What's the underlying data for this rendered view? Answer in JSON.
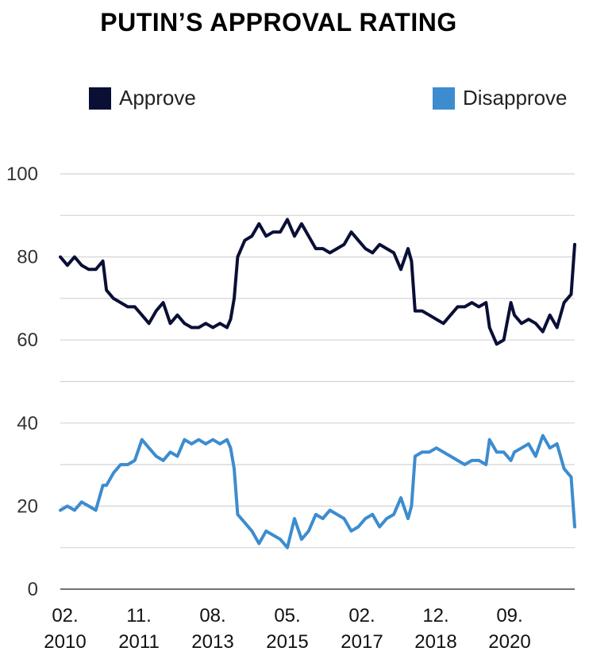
{
  "chart_data": {
    "type": "line",
    "title": "PUTIN’S APPROVAL RATING",
    "x_tick_labels": [
      {
        "month": "02.",
        "year": "2010"
      },
      {
        "month": "11.",
        "year": "2011"
      },
      {
        "month": "08.",
        "year": "2013"
      },
      {
        "month": "05.",
        "year": "2015"
      },
      {
        "month": "02.",
        "year": "2017"
      },
      {
        "month": "12.",
        "year": "2018"
      },
      {
        "month": "09.",
        "year": "2020"
      }
    ],
    "y_ticks": [
      "0",
      "20",
      "40",
      "60",
      "80",
      "100"
    ],
    "ylim": [
      0,
      100
    ],
    "xlim": [
      "2010-02",
      "2022-03"
    ],
    "grid": true,
    "legend_position": "top",
    "series": [
      {
        "name": "Approve",
        "color": "#0a0f36",
        "points": [
          [
            "2010-02",
            80
          ],
          [
            "2010-04",
            78
          ],
          [
            "2010-06",
            80
          ],
          [
            "2010-08",
            78
          ],
          [
            "2010-10",
            77
          ],
          [
            "2010-12",
            77
          ],
          [
            "2011-02",
            79
          ],
          [
            "2011-03",
            72
          ],
          [
            "2011-05",
            70
          ],
          [
            "2011-07",
            69
          ],
          [
            "2011-09",
            68
          ],
          [
            "2011-11",
            68
          ],
          [
            "2012-01",
            66
          ],
          [
            "2012-03",
            64
          ],
          [
            "2012-05",
            67
          ],
          [
            "2012-07",
            69
          ],
          [
            "2012-09",
            64
          ],
          [
            "2012-11",
            66
          ],
          [
            "2013-01",
            64
          ],
          [
            "2013-03",
            63
          ],
          [
            "2013-05",
            63
          ],
          [
            "2013-07",
            64
          ],
          [
            "2013-09",
            63
          ],
          [
            "2013-11",
            64
          ],
          [
            "2014-01",
            63
          ],
          [
            "2014-02",
            65
          ],
          [
            "2014-03",
            70
          ],
          [
            "2014-04",
            80
          ],
          [
            "2014-06",
            84
          ],
          [
            "2014-08",
            85
          ],
          [
            "2014-10",
            88
          ],
          [
            "2014-12",
            85
          ],
          [
            "2015-02",
            86
          ],
          [
            "2015-04",
            86
          ],
          [
            "2015-06",
            89
          ],
          [
            "2015-08",
            85
          ],
          [
            "2015-10",
            88
          ],
          [
            "2015-12",
            85
          ],
          [
            "2016-02",
            82
          ],
          [
            "2016-04",
            82
          ],
          [
            "2016-06",
            81
          ],
          [
            "2016-08",
            82
          ],
          [
            "2016-10",
            83
          ],
          [
            "2016-12",
            86
          ],
          [
            "2017-02",
            84
          ],
          [
            "2017-04",
            82
          ],
          [
            "2017-06",
            81
          ],
          [
            "2017-08",
            83
          ],
          [
            "2017-10",
            82
          ],
          [
            "2017-12",
            81
          ],
          [
            "2018-02",
            77
          ],
          [
            "2018-04",
            82
          ],
          [
            "2018-05",
            79
          ],
          [
            "2018-06",
            67
          ],
          [
            "2018-08",
            67
          ],
          [
            "2018-10",
            66
          ],
          [
            "2018-12",
            65
          ],
          [
            "2019-02",
            64
          ],
          [
            "2019-04",
            66
          ],
          [
            "2019-06",
            68
          ],
          [
            "2019-08",
            68
          ],
          [
            "2019-10",
            69
          ],
          [
            "2019-12",
            68
          ],
          [
            "2020-02",
            69
          ],
          [
            "2020-03",
            63
          ],
          [
            "2020-05",
            59
          ],
          [
            "2020-07",
            60
          ],
          [
            "2020-09",
            69
          ],
          [
            "2020-10",
            66
          ],
          [
            "2020-12",
            64
          ],
          [
            "2021-02",
            65
          ],
          [
            "2021-04",
            64
          ],
          [
            "2021-06",
            62
          ],
          [
            "2021-08",
            66
          ],
          [
            "2021-10",
            63
          ],
          [
            "2021-12",
            69
          ],
          [
            "2022-02",
            71
          ],
          [
            "2022-03",
            83
          ]
        ]
      },
      {
        "name": "Disapprove",
        "color": "#3d8ccf",
        "points": [
          [
            "2010-02",
            19
          ],
          [
            "2010-04",
            20
          ],
          [
            "2010-06",
            19
          ],
          [
            "2010-08",
            21
          ],
          [
            "2010-10",
            20
          ],
          [
            "2010-12",
            19
          ],
          [
            "2011-02",
            25
          ],
          [
            "2011-03",
            25
          ],
          [
            "2011-05",
            28
          ],
          [
            "2011-07",
            30
          ],
          [
            "2011-09",
            30
          ],
          [
            "2011-11",
            31
          ],
          [
            "2012-01",
            36
          ],
          [
            "2012-03",
            34
          ],
          [
            "2012-05",
            32
          ],
          [
            "2012-07",
            31
          ],
          [
            "2012-09",
            33
          ],
          [
            "2012-11",
            32
          ],
          [
            "2013-01",
            36
          ],
          [
            "2013-03",
            35
          ],
          [
            "2013-05",
            36
          ],
          [
            "2013-07",
            35
          ],
          [
            "2013-09",
            36
          ],
          [
            "2013-11",
            35
          ],
          [
            "2014-01",
            36
          ],
          [
            "2014-02",
            34
          ],
          [
            "2014-03",
            29
          ],
          [
            "2014-04",
            18
          ],
          [
            "2014-06",
            16
          ],
          [
            "2014-08",
            14
          ],
          [
            "2014-10",
            11
          ],
          [
            "2014-12",
            14
          ],
          [
            "2015-02",
            13
          ],
          [
            "2015-04",
            12
          ],
          [
            "2015-06",
            10
          ],
          [
            "2015-08",
            17
          ],
          [
            "2015-10",
            12
          ],
          [
            "2015-12",
            14
          ],
          [
            "2016-02",
            18
          ],
          [
            "2016-04",
            17
          ],
          [
            "2016-06",
            19
          ],
          [
            "2016-08",
            18
          ],
          [
            "2016-10",
            17
          ],
          [
            "2016-12",
            14
          ],
          [
            "2017-02",
            15
          ],
          [
            "2017-04",
            17
          ],
          [
            "2017-06",
            18
          ],
          [
            "2017-08",
            15
          ],
          [
            "2017-10",
            17
          ],
          [
            "2017-12",
            18
          ],
          [
            "2018-02",
            22
          ],
          [
            "2018-04",
            17
          ],
          [
            "2018-05",
            20
          ],
          [
            "2018-06",
            32
          ],
          [
            "2018-08",
            33
          ],
          [
            "2018-10",
            33
          ],
          [
            "2018-12",
            34
          ],
          [
            "2019-02",
            33
          ],
          [
            "2019-04",
            32
          ],
          [
            "2019-06",
            31
          ],
          [
            "2019-08",
            30
          ],
          [
            "2019-10",
            31
          ],
          [
            "2019-12",
            31
          ],
          [
            "2020-02",
            30
          ],
          [
            "2020-03",
            36
          ],
          [
            "2020-05",
            33
          ],
          [
            "2020-07",
            33
          ],
          [
            "2020-09",
            31
          ],
          [
            "2020-10",
            33
          ],
          [
            "2020-12",
            34
          ],
          [
            "2021-02",
            35
          ],
          [
            "2021-04",
            32
          ],
          [
            "2021-06",
            37
          ],
          [
            "2021-08",
            34
          ],
          [
            "2021-10",
            35
          ],
          [
            "2021-12",
            29
          ],
          [
            "2022-02",
            27
          ],
          [
            "2022-03",
            15
          ]
        ]
      }
    ]
  }
}
